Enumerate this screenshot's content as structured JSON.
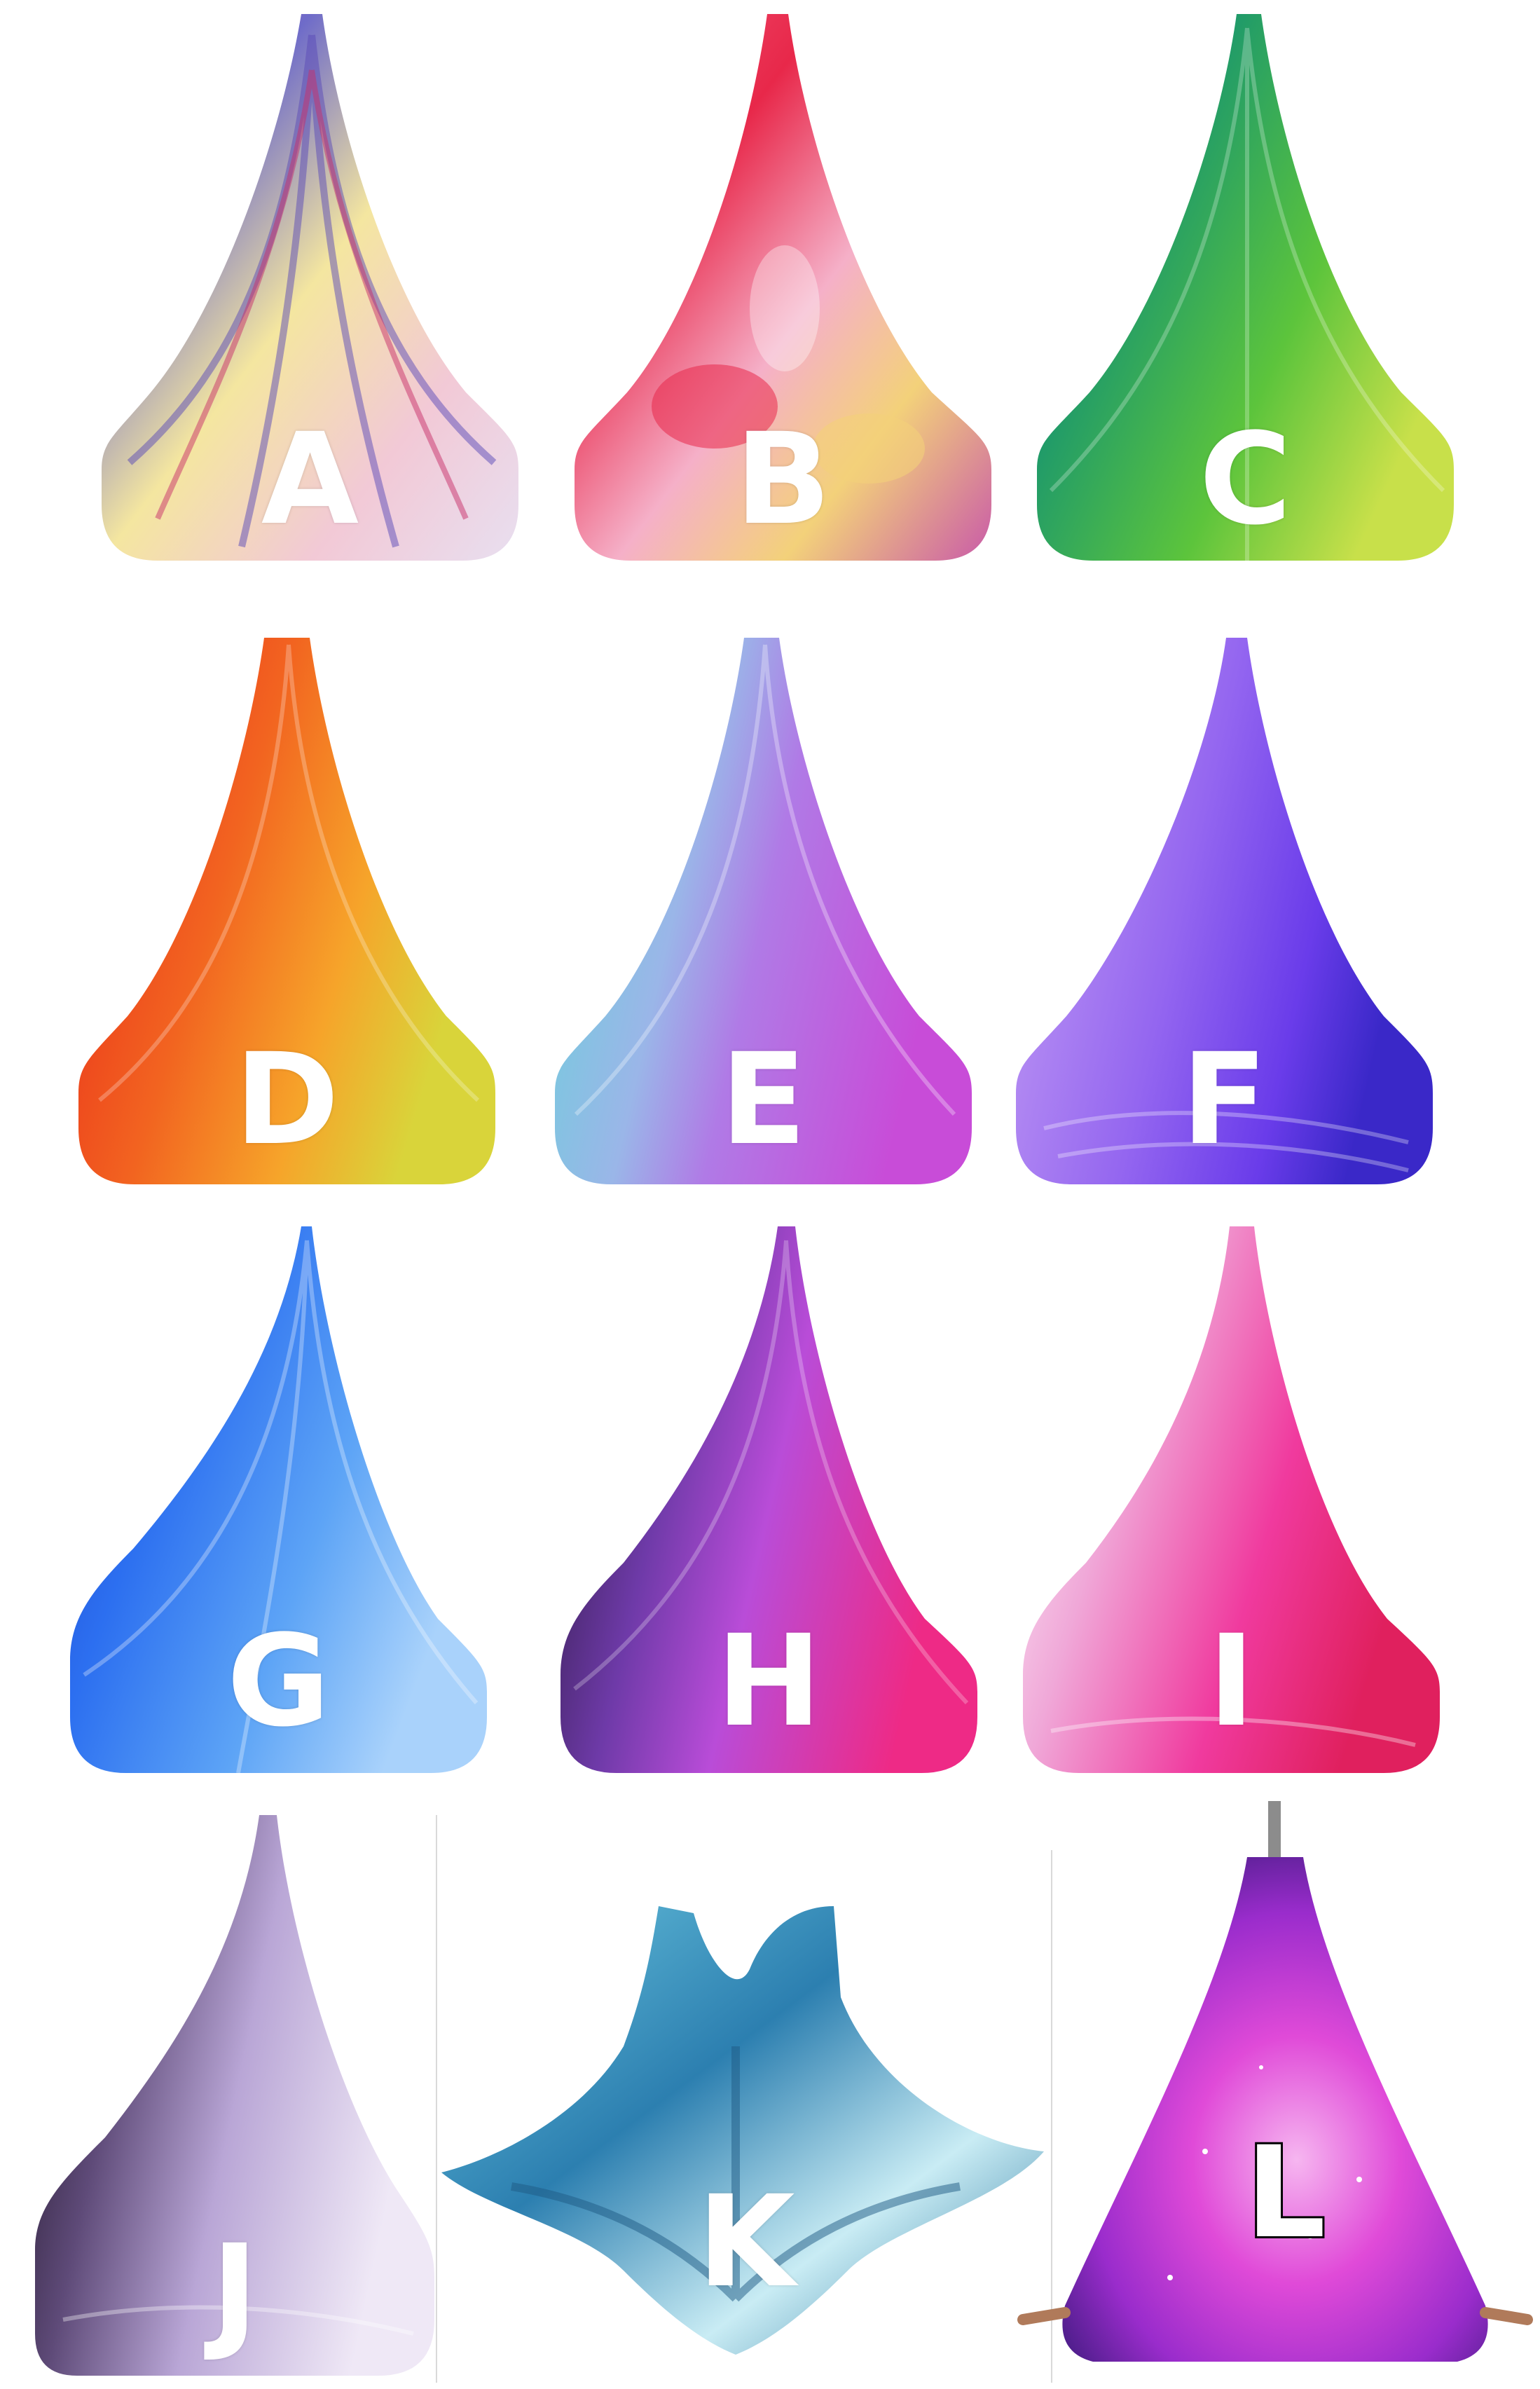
{
  "swatches": [
    {
      "label": "A",
      "name": "rainbow-tie-dye",
      "colors": [
        "#f2c9d6",
        "#d84a8c",
        "#6e6bc9",
        "#f4e6a0",
        "#e8dff0"
      ]
    },
    {
      "label": "B",
      "name": "red-pink-tie-dye",
      "colors": [
        "#f05a7a",
        "#e8284a",
        "#f5b0c8",
        "#f3d17a",
        "#c95aa8"
      ]
    },
    {
      "label": "C",
      "name": "blue-green-yellow-ombre",
      "colors": [
        "#2a6fc0",
        "#1f9a6a",
        "#5cc43c",
        "#c8e04a"
      ]
    },
    {
      "label": "D",
      "name": "red-orange-yellow-ombre",
      "colors": [
        "#e8201a",
        "#f26420",
        "#f6a42a",
        "#d9d43a"
      ]
    },
    {
      "label": "E",
      "name": "aqua-purple-ombre",
      "colors": [
        "#62d6d8",
        "#9ab6e8",
        "#b07ae6",
        "#c84cd8"
      ]
    },
    {
      "label": "F",
      "name": "violet-purple",
      "colors": [
        "#c7a2f4",
        "#9466f0",
        "#6a3cea",
        "#3a28c8"
      ]
    },
    {
      "label": "G",
      "name": "royal-blue-sky-blue",
      "colors": [
        "#1e3fc8",
        "#2c6ff0",
        "#5da4f6",
        "#a9d2fb"
      ]
    },
    {
      "label": "H",
      "name": "black-purple-pink",
      "colors": [
        "#241634",
        "#6e3aa8",
        "#b94cd8",
        "#ee2a86"
      ]
    },
    {
      "label": "I",
      "name": "white-pink-magenta",
      "colors": [
        "#ffffff",
        "#f0a8d8",
        "#f03a9e",
        "#e0205e"
      ]
    },
    {
      "label": "J",
      "name": "black-lilac-white",
      "colors": [
        "#1a1020",
        "#5e4a78",
        "#b9a6d6",
        "#efe8f6"
      ]
    },
    {
      "label": "K",
      "name": "teal-tie-dye",
      "colors": [
        "#2c7fb0",
        "#6cc7e0",
        "#c9ecf4",
        "#1e6d98"
      ]
    },
    {
      "label": "L",
      "name": "galaxy-purple",
      "colors": [
        "#3a1a7a",
        "#9a2ccc",
        "#e04ad8",
        "#f6b6f0"
      ]
    }
  ]
}
